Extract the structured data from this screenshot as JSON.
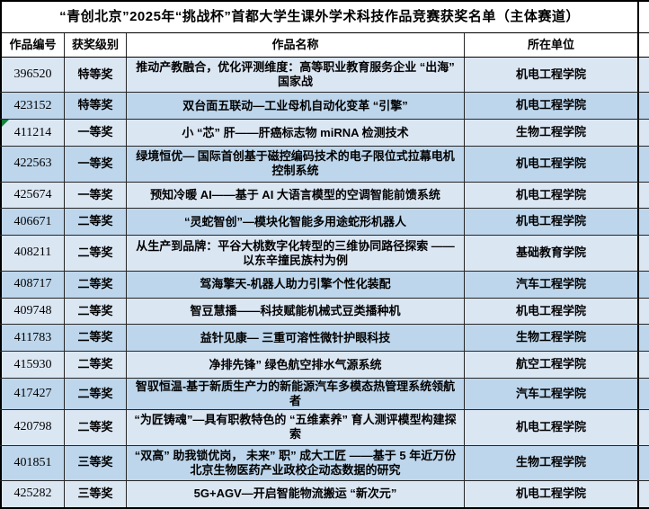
{
  "title": "“青创北京”2025年“挑战杯”首都大学生课外学术科技作品竞赛获奖名单（主体赛道）",
  "columns": {
    "work_id": "作品编号",
    "award_level": "获奖级别",
    "work_name": "作品名称",
    "unit": "所在单位"
  },
  "colors": {
    "row_light": "#dbe6f3",
    "row_dark": "#bdd6ec",
    "grid_line": "#262626",
    "outer_border": "#000000",
    "error_marker_green": "#168039"
  },
  "rows": [
    {
      "work_id": "396520",
      "award_level": "特等奖",
      "work_name": "推动产教融合，优化评测维度：高等职业教育服务企业 “出海” 国家战",
      "unit": "机电工程学院",
      "two_line": true,
      "error_marker": false
    },
    {
      "work_id": "423152",
      "award_level": "特等奖",
      "work_name": "双台面五联动—工业母机自动化变革 “引擎”",
      "unit": "机电工程学院",
      "two_line": false,
      "error_marker": false
    },
    {
      "work_id": "411214",
      "award_level": "一等奖",
      "work_name": "小 “芯” 肝——肝癌标志物 miRNA 检测技术",
      "unit": "生物工程学院",
      "two_line": false,
      "error_marker": true
    },
    {
      "work_id": "422563",
      "award_level": "一等奖",
      "work_name": "绿境恒优— 国际首创基于磁控编码技术的电子限位式拉幕电机控制系统",
      "unit": "机电工程学院",
      "two_line": true,
      "error_marker": false
    },
    {
      "work_id": "425674",
      "award_level": "一等奖",
      "work_name": "预知冷暖 AI——基于 AI 大语言模型的空调智能前馈系统",
      "unit": "机电工程学院",
      "two_line": false,
      "error_marker": false
    },
    {
      "work_id": "406671",
      "award_level": "二等奖",
      "work_name": "“灵蛇智创”—模块化智能多用途蛇形机器人",
      "unit": "机电工程学院",
      "two_line": false,
      "error_marker": false
    },
    {
      "work_id": "408211",
      "award_level": "二等奖",
      "work_name": "从生产到品牌：平谷大桃数字化转型的三维协同路径探索 —— 以东辛撞民族村为例",
      "unit": "基础教育学院",
      "two_line": true,
      "error_marker": false
    },
    {
      "work_id": "408717",
      "award_level": "二等奖",
      "work_name": "驾海擎天-机器人助力引擎个性化装配",
      "unit": "汽车工程学院",
      "two_line": false,
      "error_marker": false
    },
    {
      "work_id": "409748",
      "award_level": "二等奖",
      "work_name": "智豆慧播——科技赋能机械式豆类播种机",
      "unit": "机电工程学院",
      "two_line": false,
      "error_marker": false
    },
    {
      "work_id": "411783",
      "award_level": "二等奖",
      "work_name": "益针见康— 三重可溶性微针护眼科技",
      "unit": "生物工程学院",
      "two_line": false,
      "error_marker": false
    },
    {
      "work_id": "415930",
      "award_level": "二等奖",
      "work_name": "净排先锋” 绿色航空排水气源系统",
      "unit": "航空工程学院",
      "two_line": false,
      "error_marker": false
    },
    {
      "work_id": "417427",
      "award_level": "二等奖",
      "work_name": "智驭恒温-基于新质生产力的新能源汽车多模态热管理系统领航者",
      "unit": "汽车工程学院",
      "two_line": false,
      "error_marker": false
    },
    {
      "work_id": "420798",
      "award_level": "二等奖",
      "work_name": "“为匠铸魂”—具有职教特色的 “五维素养” 育人测评模型构建探索",
      "unit": "机电工程学院",
      "two_line": true,
      "error_marker": false
    },
    {
      "work_id": "401851",
      "award_level": "三等奖",
      "work_name": "“双高” 助我锁优岗， 未来” 职” 成大工匠 ——基于 5 年近万份北京生物医药产业政校企动态数据的研究",
      "unit": "生物工程学院",
      "two_line": true,
      "error_marker": false
    },
    {
      "work_id": "425282",
      "award_level": "三等奖",
      "work_name": "5G+AGV—开启智能物流搬运 “新次元”",
      "unit": "机电工程学院",
      "two_line": false,
      "error_marker": false
    }
  ]
}
